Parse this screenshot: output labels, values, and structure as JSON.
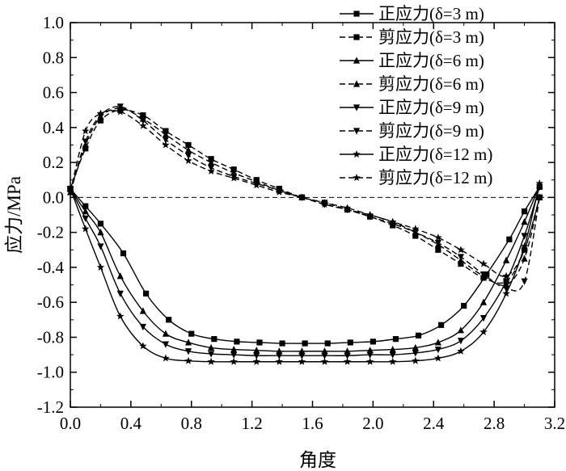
{
  "chart_data": {
    "type": "line",
    "xlabel": "角度",
    "ylabel": "应力/MPa",
    "xlim": [
      0.0,
      3.2
    ],
    "ylim": [
      -1.2,
      1.0
    ],
    "xticks": [
      "0.0",
      "0.4",
      "0.8",
      "1.2",
      "1.6",
      "2.0",
      "2.4",
      "2.8",
      "3.2"
    ],
    "yticks": [
      "-1.2",
      "-1.0",
      "-0.8",
      "-0.6",
      "-0.4",
      "-0.2",
      "0.0",
      "0.2",
      "0.4",
      "0.6",
      "0.8",
      "1.0"
    ],
    "legend_position": "top-right",
    "zero_line": true,
    "series": [
      {
        "name": "正应力(δ=3 m)",
        "style": "solid",
        "marker": "square",
        "x": [
          0.0,
          0.1,
          0.2,
          0.35,
          0.5,
          0.65,
          0.8,
          0.95,
          1.1,
          1.25,
          1.4,
          1.55,
          1.7,
          1.85,
          2.0,
          2.15,
          2.3,
          2.45,
          2.6,
          2.75,
          2.9,
          3.0,
          3.1
        ],
        "y": [
          0.05,
          -0.05,
          -0.15,
          -0.32,
          -0.55,
          -0.7,
          -0.78,
          -0.81,
          -0.825,
          -0.83,
          -0.835,
          -0.835,
          -0.835,
          -0.83,
          -0.825,
          -0.81,
          -0.79,
          -0.73,
          -0.62,
          -0.44,
          -0.24,
          -0.08,
          0.06
        ]
      },
      {
        "name": "剪应力(δ=3 m)",
        "style": "dashed",
        "marker": "square",
        "x": [
          0.0,
          0.1,
          0.2,
          0.33,
          0.48,
          0.63,
          0.78,
          0.93,
          1.08,
          1.23,
          1.38,
          1.53,
          1.68,
          1.83,
          1.98,
          2.13,
          2.28,
          2.43,
          2.58,
          2.73,
          2.88,
          3.0,
          3.1
        ],
        "y": [
          0.05,
          0.28,
          0.44,
          0.5,
          0.47,
          0.38,
          0.3,
          0.22,
          0.16,
          0.1,
          0.05,
          0.0,
          -0.03,
          -0.07,
          -0.11,
          -0.16,
          -0.22,
          -0.3,
          -0.38,
          -0.46,
          -0.48,
          -0.3,
          0.0
        ]
      },
      {
        "name": "正应力(δ=6 m)",
        "style": "solid",
        "marker": "triangle-up",
        "x": [
          0.0,
          0.1,
          0.2,
          0.33,
          0.48,
          0.63,
          0.78,
          0.93,
          1.08,
          1.23,
          1.38,
          1.53,
          1.68,
          1.83,
          1.98,
          2.13,
          2.28,
          2.43,
          2.58,
          2.73,
          2.88,
          3.0,
          3.1
        ],
        "y": [
          0.05,
          -0.08,
          -0.2,
          -0.45,
          -0.65,
          -0.78,
          -0.83,
          -0.86,
          -0.87,
          -0.875,
          -0.88,
          -0.88,
          -0.88,
          -0.88,
          -0.875,
          -0.87,
          -0.86,
          -0.83,
          -0.76,
          -0.6,
          -0.36,
          -0.14,
          0.07
        ]
      },
      {
        "name": "剪应力(δ=6 m)",
        "style": "dashed",
        "marker": "triangle-up",
        "x": [
          0.0,
          0.1,
          0.2,
          0.33,
          0.48,
          0.63,
          0.78,
          0.93,
          1.08,
          1.23,
          1.38,
          1.53,
          1.68,
          1.83,
          1.98,
          2.13,
          2.28,
          2.43,
          2.58,
          2.73,
          2.88,
          3.0,
          3.1
        ],
        "y": [
          0.03,
          0.3,
          0.46,
          0.51,
          0.45,
          0.36,
          0.27,
          0.2,
          0.14,
          0.09,
          0.04,
          0.0,
          -0.03,
          -0.06,
          -0.1,
          -0.14,
          -0.2,
          -0.27,
          -0.36,
          -0.45,
          -0.5,
          -0.35,
          0.0
        ]
      },
      {
        "name": "正应力(δ=9 m)",
        "style": "solid",
        "marker": "triangle-down",
        "x": [
          0.0,
          0.1,
          0.2,
          0.33,
          0.48,
          0.63,
          0.78,
          0.93,
          1.08,
          1.23,
          1.38,
          1.53,
          1.68,
          1.83,
          1.98,
          2.13,
          2.28,
          2.43,
          2.58,
          2.73,
          2.88,
          3.0,
          3.1
        ],
        "y": [
          0.05,
          -0.12,
          -0.28,
          -0.55,
          -0.74,
          -0.84,
          -0.88,
          -0.895,
          -0.9,
          -0.905,
          -0.905,
          -0.905,
          -0.905,
          -0.905,
          -0.9,
          -0.9,
          -0.89,
          -0.87,
          -0.82,
          -0.69,
          -0.48,
          -0.22,
          0.06
        ]
      },
      {
        "name": "剪应力(δ=9 m)",
        "style": "dashed",
        "marker": "triangle-down",
        "x": [
          0.0,
          0.1,
          0.2,
          0.33,
          0.48,
          0.63,
          0.78,
          0.93,
          1.08,
          1.23,
          1.38,
          1.53,
          1.68,
          1.83,
          1.98,
          2.13,
          2.28,
          2.43,
          2.58,
          2.73,
          2.88,
          3.0,
          3.1
        ],
        "y": [
          0.03,
          0.32,
          0.47,
          0.52,
          0.44,
          0.33,
          0.24,
          0.17,
          0.12,
          0.08,
          0.04,
          0.0,
          -0.04,
          -0.07,
          -0.11,
          -0.15,
          -0.2,
          -0.26,
          -0.34,
          -0.44,
          -0.52,
          -0.48,
          0.0
        ]
      },
      {
        "name": "正应力(δ=12 m)",
        "style": "solid",
        "marker": "star",
        "x": [
          0.0,
          0.1,
          0.2,
          0.33,
          0.48,
          0.63,
          0.78,
          0.93,
          1.08,
          1.23,
          1.38,
          1.53,
          1.68,
          1.83,
          1.98,
          2.13,
          2.28,
          2.43,
          2.58,
          2.73,
          2.88,
          3.0,
          3.1
        ],
        "y": [
          0.05,
          -0.18,
          -0.4,
          -0.68,
          -0.85,
          -0.92,
          -0.935,
          -0.94,
          -0.94,
          -0.94,
          -0.94,
          -0.94,
          -0.94,
          -0.94,
          -0.94,
          -0.94,
          -0.935,
          -0.92,
          -0.88,
          -0.77,
          -0.55,
          -0.28,
          0.08
        ]
      },
      {
        "name": "剪应力(δ=12 m)",
        "style": "dashed",
        "marker": "star",
        "x": [
          0.0,
          0.1,
          0.2,
          0.33,
          0.48,
          0.63,
          0.78,
          0.93,
          1.08,
          1.23,
          1.38,
          1.53,
          1.68,
          1.83,
          1.98,
          2.13,
          2.28,
          2.43,
          2.58,
          2.73,
          2.88,
          3.0,
          3.1
        ],
        "y": [
          0.03,
          0.38,
          0.48,
          0.49,
          0.41,
          0.3,
          0.21,
          0.15,
          0.11,
          0.07,
          0.03,
          0.0,
          -0.04,
          -0.07,
          -0.1,
          -0.14,
          -0.18,
          -0.23,
          -0.3,
          -0.38,
          -0.45,
          -0.3,
          0.0
        ]
      }
    ]
  }
}
